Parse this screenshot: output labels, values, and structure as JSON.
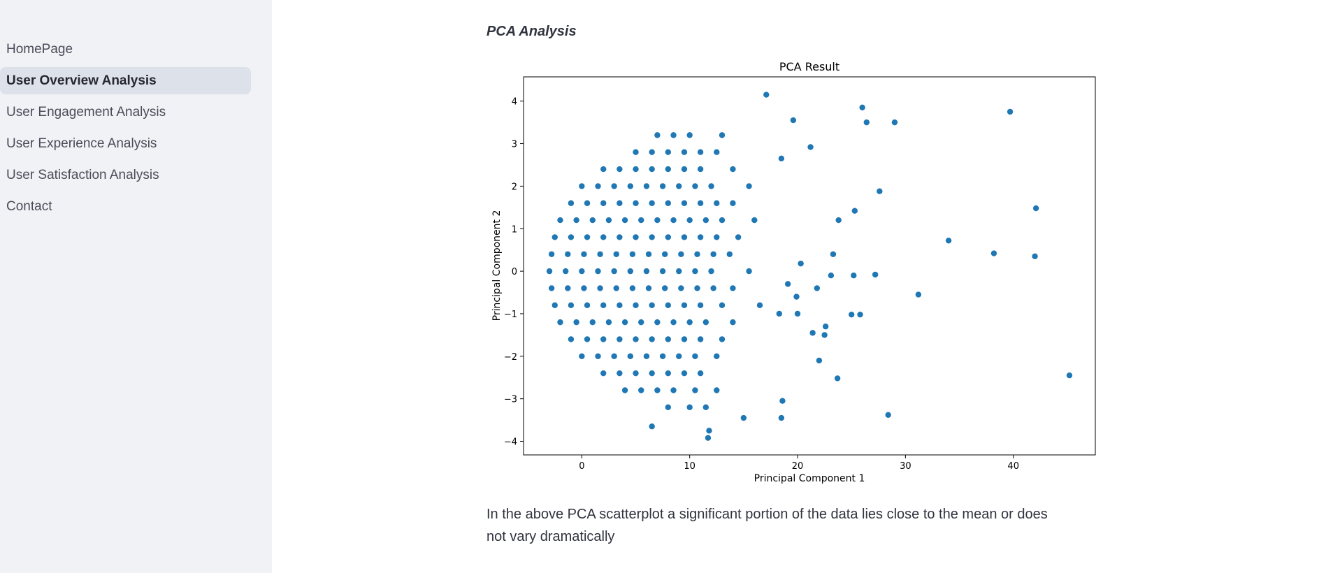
{
  "sidebar": {
    "items": [
      "HomePage",
      "User Overview Analysis",
      "User Engagement Analysis",
      "User Experience Analysis",
      "User Satisfaction Analysis",
      "Contact"
    ],
    "selected": 1
  },
  "content": {
    "heading": "PCA Analysis",
    "paragraph": "In the above PCA scatterplot a significant portion of the data lies close to the mean or does not vary dramatically"
  },
  "chart_data": {
    "type": "scatter",
    "title": "PCA Result",
    "xlabel": "Principal Component 1",
    "ylabel": "Principal Component 2",
    "color": "#1f77b4",
    "xlim": [
      -5.4,
      47.6
    ],
    "ylim": [
      -4.32,
      4.57
    ],
    "xticks": [
      0,
      10,
      20,
      30,
      40
    ],
    "yticks": [
      {
        "value": -4,
        "label": "−4"
      },
      {
        "value": -3,
        "label": "−3"
      },
      {
        "value": -2,
        "label": "−2"
      },
      {
        "value": -1,
        "label": "−1"
      },
      0,
      1,
      2,
      3,
      4
    ],
    "x": [
      7,
      8.5,
      10,
      13,
      5,
      6.5,
      8,
      9.5,
      11,
      12.5,
      2,
      3.5,
      5,
      6.5,
      8,
      9.5,
      11,
      14,
      0,
      1.5,
      3,
      4.5,
      6,
      7.5,
      9,
      10.5,
      12,
      15.5,
      -1,
      0.5,
      2,
      3.5,
      5,
      6.5,
      8,
      9.5,
      11,
      12.5,
      14,
      -2,
      -0.5,
      1,
      2.5,
      4,
      5.5,
      7,
      8.5,
      10,
      11.5,
      13,
      16,
      -2.5,
      -1,
      0.5,
      2,
      3.5,
      5,
      6.5,
      8,
      9.5,
      11,
      12.5,
      14.5,
      -2.8,
      -1.3,
      0.2,
      1.7,
      3.2,
      4.7,
      6.2,
      7.7,
      9.2,
      10.7,
      12.2,
      13.7,
      -3,
      -1.5,
      0,
      1.5,
      3,
      4.5,
      6,
      7.5,
      9,
      10.5,
      12,
      15.5,
      -2.8,
      -1.3,
      0.2,
      1.7,
      3.2,
      4.7,
      6.2,
      7.7,
      9.2,
      10.7,
      12.2,
      14,
      -2.5,
      -1,
      0.5,
      2,
      3.5,
      5,
      6.5,
      8,
      9.5,
      11,
      13,
      16.5,
      -2,
      -0.5,
      1,
      2.5,
      4,
      5.5,
      7,
      8.5,
      10,
      11.5,
      14,
      -1,
      0.5,
      2,
      3.5,
      5,
      6.5,
      8,
      9.5,
      11,
      13,
      0,
      1.5,
      3,
      4.5,
      6,
      7.5,
      9,
      10.5,
      12.5,
      2,
      3.5,
      5,
      6.5,
      8,
      9.5,
      11,
      4,
      5.5,
      7,
      8.5,
      10.5,
      12.5,
      8,
      10,
      11.5,
      17.1,
      19.6,
      26,
      26.4,
      29,
      39.7,
      21.2,
      18.5,
      27.6,
      42.1,
      23.8,
      25.3,
      34,
      38.2,
      42,
      27.2,
      25.2,
      31.2,
      45.2,
      28.4,
      18.6,
      18.5,
      15,
      6.5,
      11.8,
      11.7,
      23.7,
      22,
      25,
      25.8,
      22.6,
      22.5,
      21.4,
      23.3,
      23.1,
      20.3,
      21.8,
      19.9,
      20,
      18.3,
      19.1
    ],
    "values": [
      3.2,
      3.2,
      3.2,
      3.2,
      2.8,
      2.8,
      2.8,
      2.8,
      2.8,
      2.8,
      2.4,
      2.4,
      2.4,
      2.4,
      2.4,
      2.4,
      2.4,
      2.4,
      2,
      2,
      2,
      2,
      2,
      2,
      2,
      2,
      2,
      2,
      1.6,
      1.6,
      1.6,
      1.6,
      1.6,
      1.6,
      1.6,
      1.6,
      1.6,
      1.6,
      1.6,
      1.2,
      1.2,
      1.2,
      1.2,
      1.2,
      1.2,
      1.2,
      1.2,
      1.2,
      1.2,
      1.2,
      1.2,
      0.8,
      0.8,
      0.8,
      0.8,
      0.8,
      0.8,
      0.8,
      0.8,
      0.8,
      0.8,
      0.8,
      0.8,
      0.4,
      0.4,
      0.4,
      0.4,
      0.4,
      0.4,
      0.4,
      0.4,
      0.4,
      0.4,
      0.4,
      0.4,
      0,
      0,
      0,
      0,
      0,
      0,
      0,
      0,
      0,
      0,
      0,
      0,
      -0.4,
      -0.4,
      -0.4,
      -0.4,
      -0.4,
      -0.4,
      -0.4,
      -0.4,
      -0.4,
      -0.4,
      -0.4,
      -0.4,
      -0.8,
      -0.8,
      -0.8,
      -0.8,
      -0.8,
      -0.8,
      -0.8,
      -0.8,
      -0.8,
      -0.8,
      -0.8,
      -0.8,
      -1.2,
      -1.2,
      -1.2,
      -1.2,
      -1.2,
      -1.2,
      -1.2,
      -1.2,
      -1.2,
      -1.2,
      -1.2,
      -1.6,
      -1.6,
      -1.6,
      -1.6,
      -1.6,
      -1.6,
      -1.6,
      -1.6,
      -1.6,
      -1.6,
      -2,
      -2,
      -2,
      -2,
      -2,
      -2,
      -2,
      -2,
      -2,
      -2.4,
      -2.4,
      -2.4,
      -2.4,
      -2.4,
      -2.4,
      -2.4,
      -2.8,
      -2.8,
      -2.8,
      -2.8,
      -2.8,
      -2.8,
      -3.2,
      -3.2,
      -3.2,
      4.15,
      3.55,
      3.85,
      3.5,
      3.5,
      3.75,
      2.92,
      2.65,
      1.88,
      1.48,
      1.2,
      1.42,
      0.72,
      0.42,
      0.35,
      -0.08,
      -0.1,
      -0.55,
      -2.45,
      -3.38,
      -3.05,
      -3.45,
      -3.45,
      -3.65,
      -3.75,
      -3.92,
      -2.52,
      -2.1,
      -1.02,
      -1.02,
      -1.3,
      -1.5,
      -1.45,
      0.4,
      -0.1,
      0.18,
      -0.4,
      -0.6,
      -1,
      -1,
      -0.3
    ]
  }
}
